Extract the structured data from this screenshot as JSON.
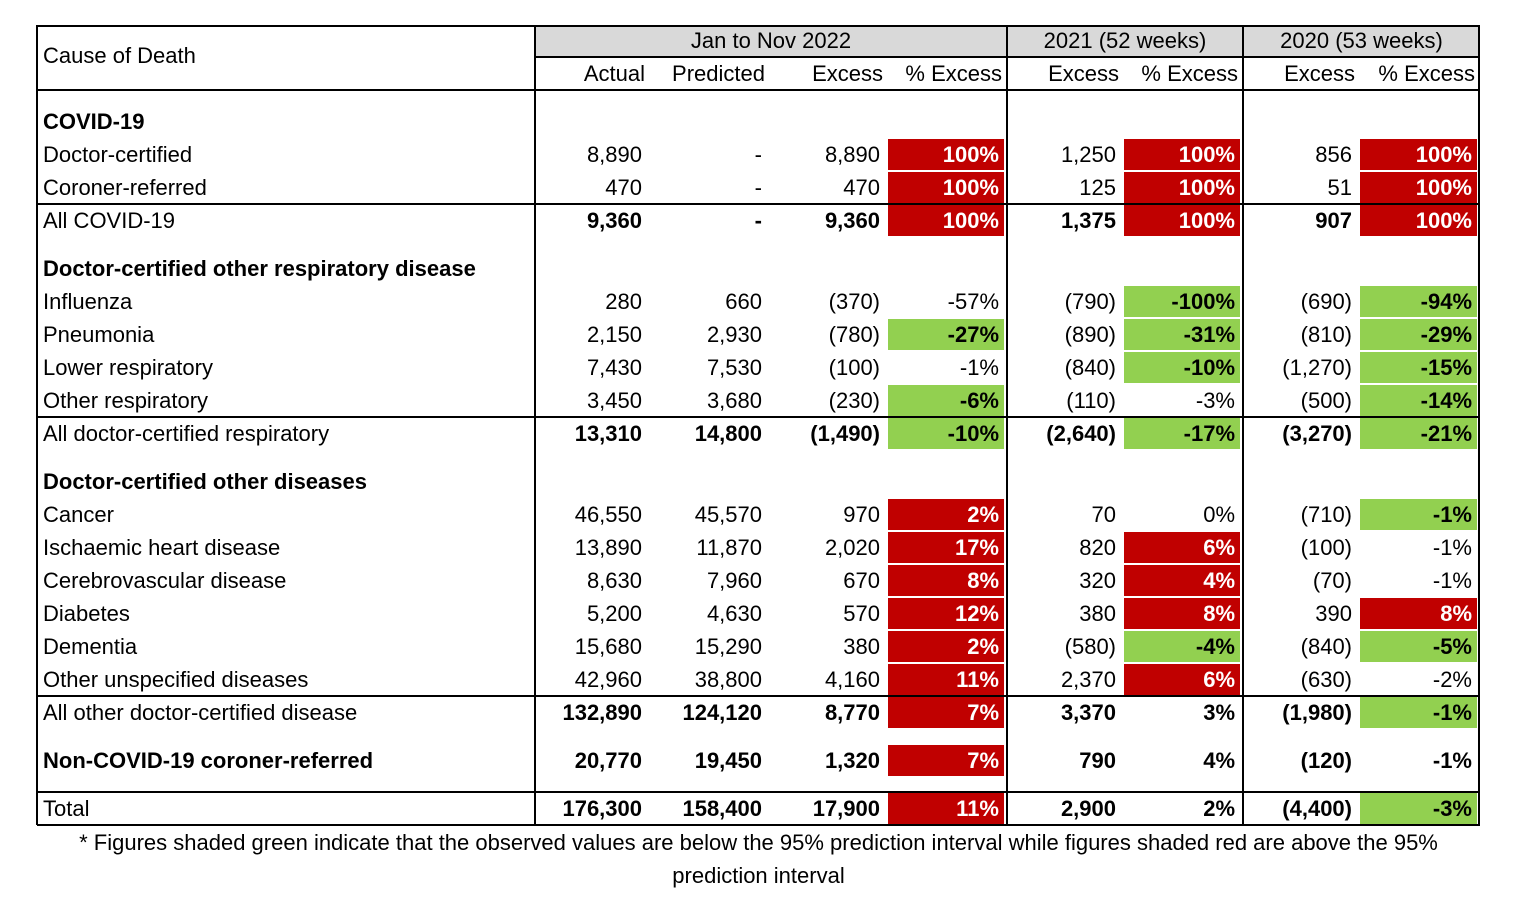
{
  "header": {
    "cause": "Cause of Death",
    "groups": [
      "Jan to Nov 2022",
      "2021 (52 weeks)",
      "2020 (53 weeks)"
    ],
    "columns": [
      "Actual",
      "Predicted",
      "Excess",
      "% Excess",
      "Excess",
      "% Excess",
      "Excess",
      "% Excess"
    ]
  },
  "shade_colors": {
    "red": "#c00000",
    "green": "#92d050"
  },
  "table": {
    "rows": [
      {
        "label": "COVID-19",
        "gap_before": true,
        "bold_label": true
      },
      {
        "label": "Doctor-certified",
        "cells": [
          "8,890",
          "-",
          "8,890",
          "100%",
          "1,250",
          "100%",
          "856",
          "100%"
        ],
        "red": [
          3,
          5,
          7
        ]
      },
      {
        "label": "Coroner-referred",
        "cells": [
          "470",
          "-",
          "470",
          "100%",
          "125",
          "100%",
          "51",
          "100%"
        ],
        "red": [
          3,
          5,
          7
        ]
      },
      {
        "label": "All COVID-19",
        "cells": [
          "9,360",
          "-",
          "9,360",
          "100%",
          "1,375",
          "100%",
          "907",
          "100%"
        ],
        "red": [
          3,
          5,
          7
        ],
        "rule_above": true,
        "bold_values": true
      },
      {
        "label": "Doctor-certified other respiratory disease",
        "gap_before": true,
        "bold_label": true
      },
      {
        "label": "Influenza",
        "cells": [
          "280",
          "660",
          "(370)",
          "-57%",
          "(790)",
          "-100%",
          "(690)",
          "-94%"
        ],
        "green": [
          5,
          7
        ]
      },
      {
        "label": "Pneumonia",
        "cells": [
          "2,150",
          "2,930",
          "(780)",
          "-27%",
          "(890)",
          "-31%",
          "(810)",
          "-29%"
        ],
        "green": [
          3,
          5,
          7
        ]
      },
      {
        "label": "Lower respiratory",
        "cells": [
          "7,430",
          "7,530",
          "(100)",
          "-1%",
          "(840)",
          "-10%",
          "(1,270)",
          "-15%"
        ],
        "green": [
          5,
          7
        ]
      },
      {
        "label": "Other respiratory",
        "cells": [
          "3,450",
          "3,680",
          "(230)",
          "-6%",
          "(110)",
          "-3%",
          "(500)",
          "-14%"
        ],
        "green": [
          3,
          7
        ]
      },
      {
        "label": "All doctor-certified respiratory",
        "cells": [
          "13,310",
          "14,800",
          "(1,490)",
          "-10%",
          "(2,640)",
          "-17%",
          "(3,270)",
          "-21%"
        ],
        "green": [
          3,
          5,
          7
        ],
        "rule_above": true,
        "bold_values": true
      },
      {
        "label": "Doctor-certified other diseases",
        "gap_before": true,
        "bold_label": true
      },
      {
        "label": "Cancer",
        "cells": [
          "46,550",
          "45,570",
          "970",
          "2%",
          "70",
          "0%",
          "(710)",
          "-1%"
        ],
        "red": [
          3
        ],
        "green": [
          7
        ]
      },
      {
        "label": "Ischaemic heart disease",
        "cells": [
          "13,890",
          "11,870",
          "2,020",
          "17%",
          "820",
          "6%",
          "(100)",
          "-1%"
        ],
        "red": [
          3,
          5
        ]
      },
      {
        "label": "Cerebrovascular disease",
        "cells": [
          "8,630",
          "7,960",
          "670",
          "8%",
          "320",
          "4%",
          "(70)",
          "-1%"
        ],
        "red": [
          3,
          5
        ]
      },
      {
        "label": "Diabetes",
        "cells": [
          "5,200",
          "4,630",
          "570",
          "12%",
          "380",
          "8%",
          "390",
          "8%"
        ],
        "red": [
          3,
          5,
          7
        ]
      },
      {
        "label": "Dementia",
        "cells": [
          "15,680",
          "15,290",
          "380",
          "2%",
          "(580)",
          "-4%",
          "(840)",
          "-5%"
        ],
        "red": [
          3
        ],
        "green": [
          5,
          7
        ]
      },
      {
        "label": "Other unspecified diseases",
        "cells": [
          "42,960",
          "38,800",
          "4,160",
          "11%",
          "2,370",
          "6%",
          "(630)",
          "-2%"
        ],
        "red": [
          3,
          5
        ]
      },
      {
        "label": "All other doctor-certified disease",
        "cells": [
          "132,890",
          "124,120",
          "8,770",
          "7%",
          "3,370",
          "3%",
          "(1,980)",
          "-1%"
        ],
        "red": [
          3
        ],
        "green": [
          7
        ],
        "rule_above": true,
        "bold_values": true
      },
      {
        "label": "Non-COVID-19 coroner-referred",
        "cells": [
          "20,770",
          "19,450",
          "1,320",
          "7%",
          "790",
          "4%",
          "(120)",
          "-1%"
        ],
        "red": [
          3
        ],
        "gap_before": true,
        "bold_label": true,
        "bold_values": true
      },
      {
        "label": "Total",
        "cells": [
          "176,300",
          "158,400",
          "17,900",
          "11%",
          "2,900",
          "2%",
          "(4,400)",
          "-3%"
        ],
        "red": [
          3
        ],
        "green": [
          7
        ],
        "gap_before": true,
        "rule_above": true,
        "bold_values": true
      }
    ]
  },
  "footnote": "* Figures shaded green indicate that the observed values are below the 95% prediction interval while figures shaded red are above the 95% prediction interval"
}
